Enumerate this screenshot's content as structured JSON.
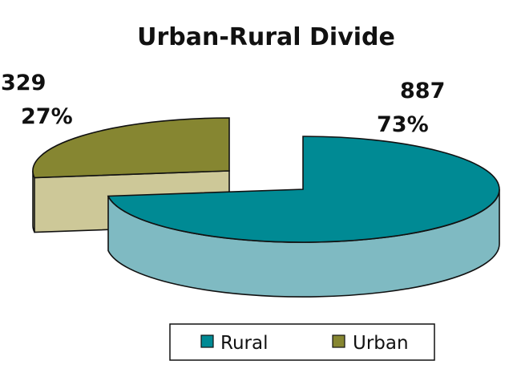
{
  "chart_data": {
    "type": "pie",
    "title": "Urban-Rural Divide",
    "slices": [
      {
        "name": "Rural",
        "value": 887,
        "percent": "73%",
        "value_label": "887",
        "color": "#008a94",
        "side_color": "#7fbac2"
      },
      {
        "name": "Urban",
        "value": 329,
        "percent": "27%",
        "value_label": "329",
        "color": "#868631",
        "side_color": "#cdc898"
      }
    ],
    "three_d": true,
    "exploded": true,
    "legend": {
      "position": "bottom",
      "items": [
        "Rural",
        "Urban"
      ]
    }
  }
}
